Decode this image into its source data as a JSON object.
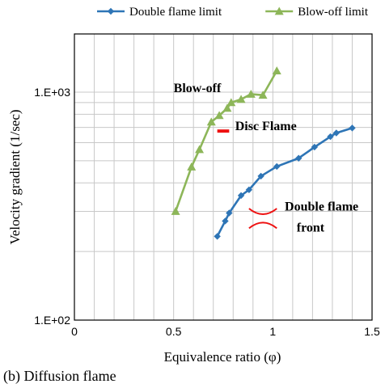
{
  "chart_data": {
    "type": "line",
    "caption": "(b) Diffusion flame",
    "xlabel": "Equivalence ratio (φ)",
    "ylabel": "Velocity gradient (1/sec)",
    "xlim": [
      0,
      1.5
    ],
    "ylim": [
      100,
      1800
    ],
    "yscale": "log",
    "grid": true,
    "legend_position": "top",
    "x_ticks": [
      {
        "value": 0,
        "label": "0"
      },
      {
        "value": 0.5,
        "label": "0.5"
      },
      {
        "value": 1,
        "label": "1"
      },
      {
        "value": 1.5,
        "label": "1.5"
      }
    ],
    "y_ticks": [
      {
        "value": 100,
        "label": "1.E+02"
      },
      {
        "value": 1000,
        "label": "1.E+03"
      }
    ],
    "series": [
      {
        "name": "Double flame limit",
        "color": "#2e75b6",
        "marker": "diamond",
        "x": [
          0.72,
          0.76,
          0.78,
          0.84,
          0.88,
          0.94,
          1.02,
          1.13,
          1.21,
          1.29,
          1.32,
          1.4
        ],
        "y": [
          233,
          272,
          295,
          352,
          373,
          428,
          472,
          513,
          574,
          638,
          662,
          696
        ]
      },
      {
        "name": "Blow-off limit",
        "color": "#8db659",
        "marker": "triangle",
        "x": [
          0.51,
          0.59,
          0.63,
          0.69,
          0.73,
          0.77,
          0.79,
          0.84,
          0.89,
          0.95,
          1.02
        ],
        "y": [
          300,
          470,
          560,
          740,
          790,
          850,
          900,
          930,
          980,
          970,
          1240
        ]
      }
    ],
    "annotations": [
      {
        "text": "Blow-off",
        "x": 0.5,
        "y": 1000
      },
      {
        "text": "Disc Flame",
        "x": 0.81,
        "y": 680
      },
      {
        "text": "Double flame",
        "x": 1.06,
        "y": 302
      },
      {
        "text": "front",
        "x": 1.12,
        "y": 245
      }
    ],
    "markers": [
      {
        "name": "disc-flame-marker",
        "color": "#ee1111",
        "x": [
          0.72,
          0.78
        ],
        "y": 675
      },
      {
        "name": "double-flame-symbol",
        "color": "#ee1111",
        "x": [
          0.88,
          1.02
        ],
        "y": [
          270,
          289
        ]
      }
    ]
  }
}
